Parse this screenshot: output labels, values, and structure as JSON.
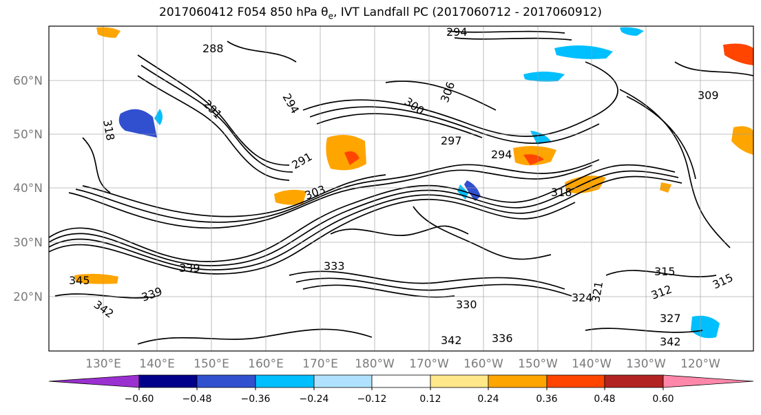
{
  "figure": {
    "title_prefix": "2017060412 F054 850 hPa θ",
    "title_subscript": "e",
    "title_suffix": ", IVT Landfall PC (2017060712 - 2017060912)"
  },
  "map": {
    "lon_labels": [
      "130°E",
      "140°E",
      "150°E",
      "160°E",
      "170°E",
      "180°W",
      "170°W",
      "160°W",
      "150°W",
      "140°W",
      "130°W",
      "120°W"
    ],
    "lat_labels": [
      "60°N",
      "50°N",
      "40°N",
      "30°N",
      "20°N"
    ],
    "contour_labels": [
      "288",
      "291",
      "291",
      "294",
      "294",
      "294",
      "297",
      "300",
      "303",
      "306",
      "309",
      "312",
      "315",
      "315",
      "318",
      "318",
      "321",
      "324",
      "327",
      "330",
      "333",
      "336",
      "339",
      "339",
      "342",
      "342",
      "342",
      "345"
    ]
  },
  "colorbar": {
    "ticks": [
      "−0.60",
      "−0.48",
      "−0.36",
      "−0.24",
      "−0.12",
      "0.12",
      "0.24",
      "0.36",
      "0.48",
      "0.60"
    ],
    "colors": [
      "#9b30d0",
      "#00008b",
      "#3050d0",
      "#00bfff",
      "#b0e2ff",
      "#ffffff",
      "#ffe88a",
      "#ffa500",
      "#ff4500",
      "#b22222",
      "#ff88aa"
    ]
  }
}
